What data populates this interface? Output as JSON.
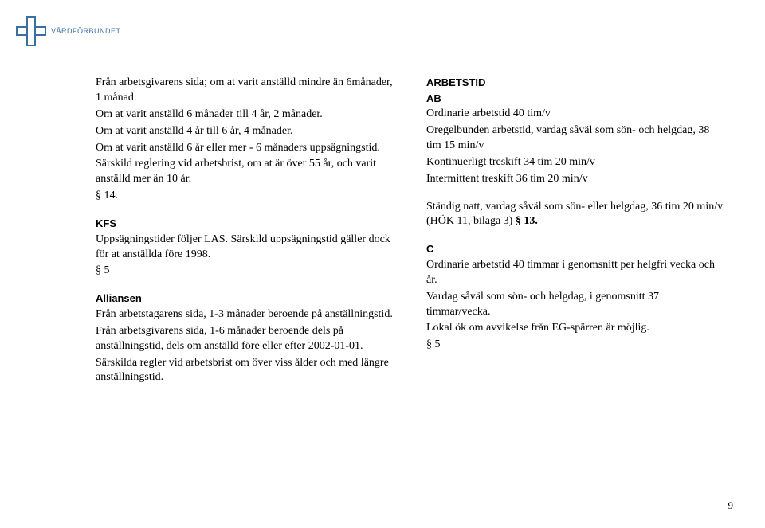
{
  "logo": {
    "text": "VÅRDFÖRBUNDET",
    "border_color": "#3a6fa0"
  },
  "left": {
    "p1": "Från arbetsgivarens sida; om at varit anställd mindre än 6månader, 1 månad.",
    "p2": "Om at varit anställd 6 månader till 4 år, 2 månader.",
    "p3": "Om at varit anställd 4 år till 6 år, 4 månader.",
    "p4": "Om at varit anställd 6 år eller mer - 6 månaders uppsägningstid.",
    "p5": "Särskild reglering vid arbetsbrist, om at är över 55 år, och varit anställd mer än 10 år.",
    "p6": "§ 14.",
    "kfs_heading": "KFS",
    "kfs1": "Uppsägningstider följer LAS. Särskild uppsägningstid gäller dock för at anställda före 1998.",
    "kfs2": "§ 5",
    "all_heading": "Alliansen",
    "all1": "Från arbetstagarens sida, 1-3 månader beroende på anställningstid.",
    "all2": "Från arbetsgivarens sida, 1-6 månader beroende dels på anställningstid, dels om anställd före eller efter 2002-01-01.",
    "all3": "Särskilda regler vid arbetsbrist om över viss ålder och med längre anställningstid."
  },
  "right": {
    "h1": "ARBETSTID",
    "ab_heading": "AB",
    "ab1": "Ordinarie arbetstid 40 tim/v",
    "ab2": "Oregelbunden arbetstid, vardag såväl som sön- och helgdag, 38 tim 15 min/v",
    "ab3": "Kontinuerligt treskift 34 tim 20 min/v",
    "ab4": "Intermittent treskift 36 tim 20 min/v",
    "ab5a": "Ständig natt, vardag såväl som sön- eller helgdag, 36 tim 20 min/v (HÖK 11, bilaga 3)  ",
    "ab5b": "§ 13.",
    "c_heading": "C",
    "c1": "Ordinarie arbetstid 40 timmar i genomsnitt per helgfri vecka och år.",
    "c2": "Vardag såväl som sön- och helgdag, i genomsnitt 37 timmar/vecka.",
    "c3": "Lokal ök om avvikelse från EG-spärren är möjlig.",
    "c4": "§ 5"
  },
  "page_number": "9"
}
